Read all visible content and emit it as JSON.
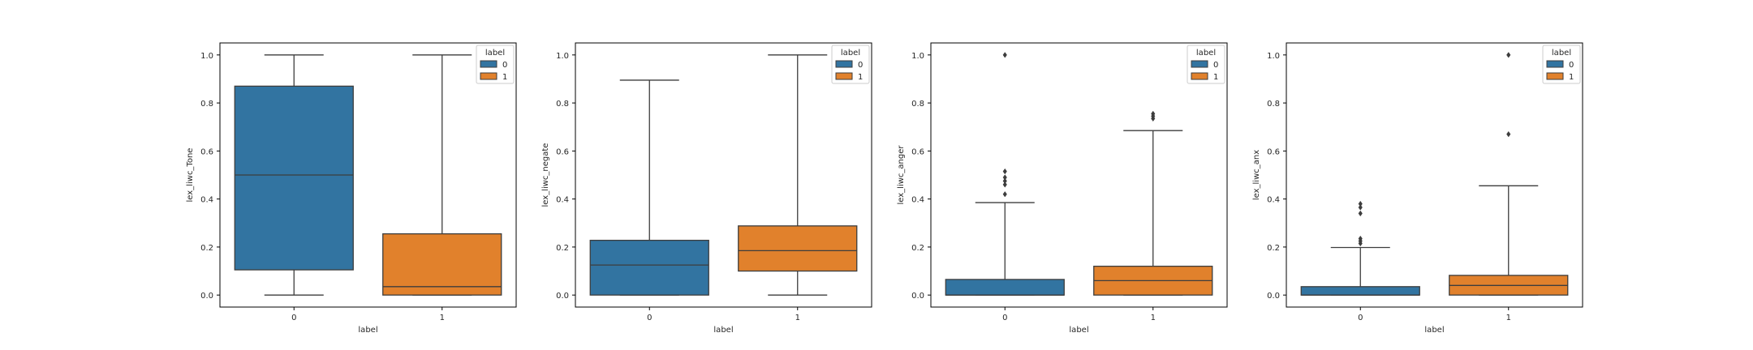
{
  "chart_data": [
    {
      "type": "box",
      "xlabel": "label",
      "ylabel": "lex_liwc_Tone",
      "categories": [
        "0",
        "1"
      ],
      "ylim": [
        -0.05,
        1.05
      ],
      "yticks": [
        "0.0",
        "0.2",
        "0.4",
        "0.6",
        "0.8",
        "1.0"
      ],
      "legend": {
        "title": "label",
        "entries": [
          "0",
          "1"
        ],
        "position": "top-right"
      },
      "boxes": [
        {
          "category": "0",
          "whislo": 0.0,
          "q1": 0.105,
          "median": 0.5,
          "q3": 0.87,
          "whishi": 1.0,
          "fliers": []
        },
        {
          "category": "1",
          "whislo": 0.0,
          "q1": 0.0,
          "median": 0.035,
          "q3": 0.255,
          "whishi": 1.0,
          "fliers": []
        }
      ]
    },
    {
      "type": "box",
      "xlabel": "label",
      "ylabel": "lex_liwc_negate",
      "categories": [
        "0",
        "1"
      ],
      "ylim": [
        -0.05,
        1.05
      ],
      "yticks": [
        "0.0",
        "0.2",
        "0.4",
        "0.6",
        "0.8",
        "1.0"
      ],
      "legend": {
        "title": "label",
        "entries": [
          "0",
          "1"
        ],
        "position": "top-right"
      },
      "boxes": [
        {
          "category": "0",
          "whislo": 0.0,
          "q1": 0.0,
          "median": 0.125,
          "q3": 0.228,
          "whishi": 0.895,
          "fliers": []
        },
        {
          "category": "1",
          "whislo": 0.0,
          "q1": 0.1,
          "median": 0.185,
          "q3": 0.288,
          "whishi": 1.0,
          "fliers": []
        }
      ]
    },
    {
      "type": "box",
      "xlabel": "label",
      "ylabel": "lex_liwc_anger",
      "categories": [
        "0",
        "1"
      ],
      "ylim": [
        -0.05,
        1.05
      ],
      "yticks": [
        "0.0",
        "0.2",
        "0.4",
        "0.6",
        "0.8",
        "1.0"
      ],
      "legend": {
        "title": "label",
        "entries": [
          "0",
          "1"
        ],
        "position": "top-right"
      },
      "boxes": [
        {
          "category": "0",
          "whislo": 0.0,
          "q1": 0.0,
          "median": 0.0,
          "q3": 0.065,
          "whishi": 0.385,
          "fliers": [
            0.42,
            0.46,
            0.475,
            0.49,
            0.515,
            1.0
          ]
        },
        {
          "category": "1",
          "whislo": 0.0,
          "q1": 0.0,
          "median": 0.06,
          "q3": 0.12,
          "whishi": 0.685,
          "fliers": [
            0.735,
            0.745,
            0.755
          ]
        }
      ]
    },
    {
      "type": "box",
      "xlabel": "label",
      "ylabel": "lex_liwc_anx",
      "categories": [
        "0",
        "1"
      ],
      "ylim": [
        -0.05,
        1.05
      ],
      "yticks": [
        "0.0",
        "0.2",
        "0.4",
        "0.6",
        "0.8",
        "1.0"
      ],
      "legend": {
        "title": "label",
        "entries": [
          "0",
          "1"
        ],
        "position": "top-right"
      },
      "boxes": [
        {
          "category": "0",
          "whislo": 0.0,
          "q1": 0.0,
          "median": 0.0,
          "q3": 0.035,
          "whishi": 0.198,
          "fliers": [
            0.215,
            0.225,
            0.235,
            0.34,
            0.365,
            0.38
          ]
        },
        {
          "category": "1",
          "whislo": 0.0,
          "q1": 0.0,
          "median": 0.04,
          "q3": 0.082,
          "whishi": 0.455,
          "fliers": [
            0.67,
            1.0
          ]
        }
      ]
    }
  ],
  "colors": {
    "0": "#3274a1",
    "1": "#e1812c"
  }
}
